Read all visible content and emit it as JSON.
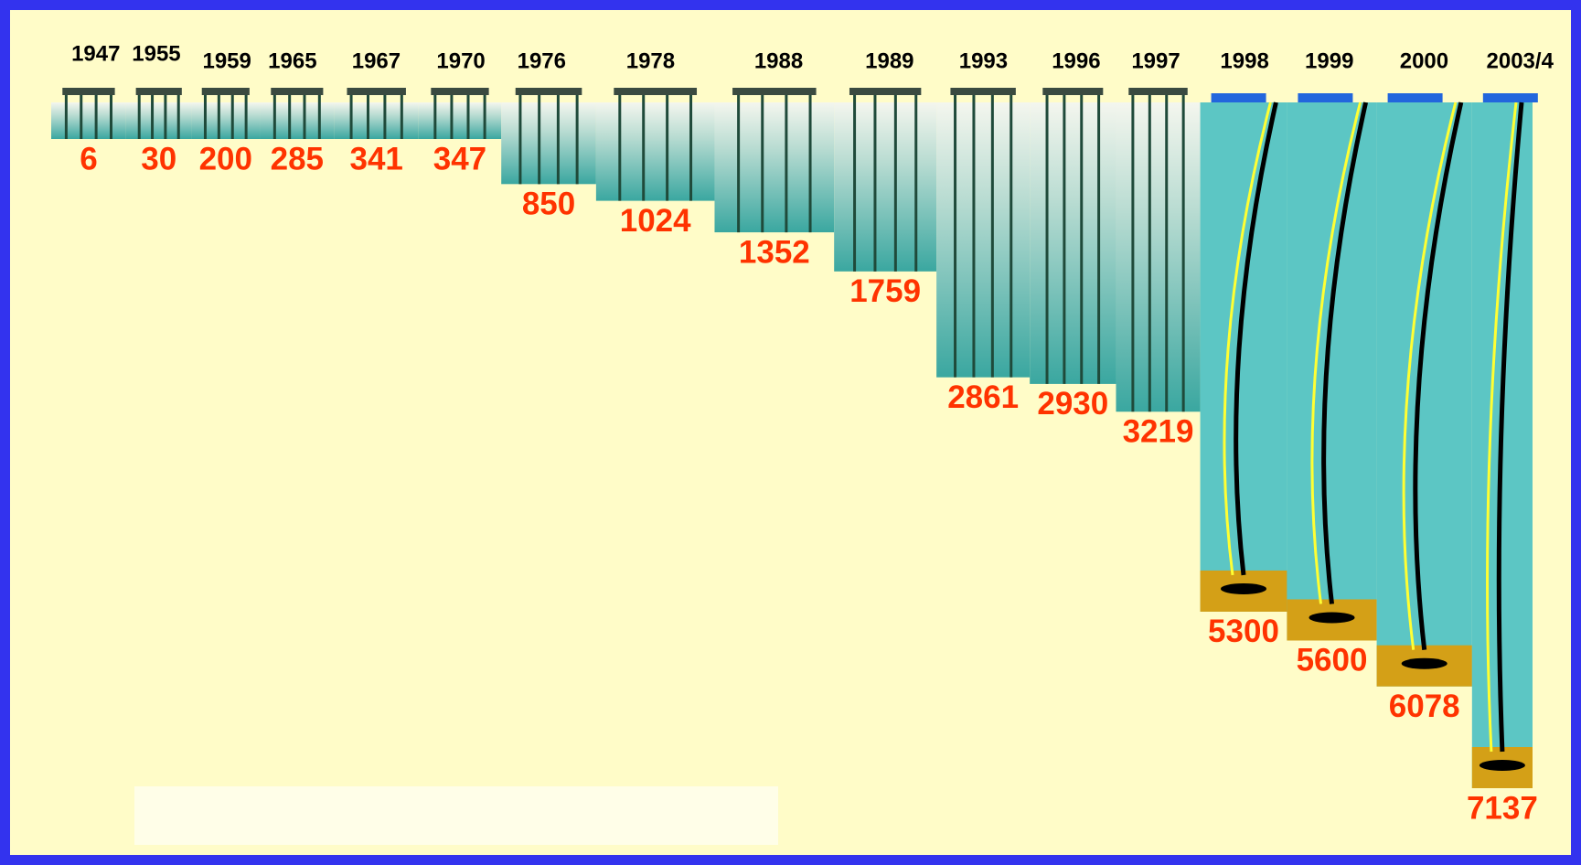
{
  "chart_data": {
    "type": "bar",
    "categories": [
      "1947",
      "1955",
      "1959",
      "1965",
      "1967",
      "1970",
      "1976",
      "1978",
      "1988",
      "1989",
      "1993",
      "1996",
      "1997",
      "1998",
      "1999",
      "2000",
      "2003/4"
    ],
    "values": [
      6,
      30,
      200,
      285,
      341,
      347,
      850,
      1024,
      1352,
      1759,
      2861,
      2930,
      3219,
      5300,
      5600,
      6078,
      7137
    ],
    "color": "#5cc6c4"
  }
}
